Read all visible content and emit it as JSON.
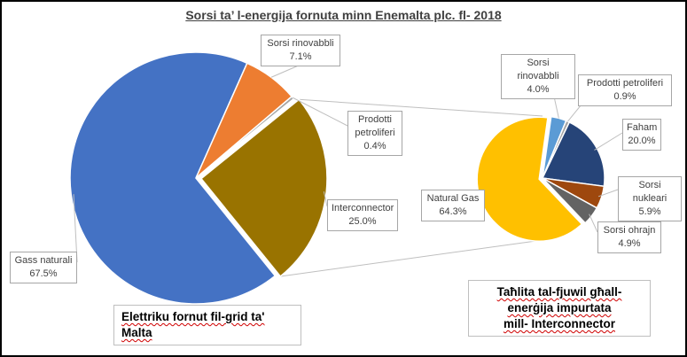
{
  "chart_data": [
    {
      "type": "pie",
      "title": "Sorsi ta’ l-energija fornuta minn Enemalta plc. fl- 2018",
      "caption": "Elettriku fornut fil-grid ta' Malta",
      "categories": [
        "Gass naturali",
        "Sorsi rinovabbli",
        "Prodotti petroliferi",
        "Interconnector"
      ],
      "labels": [
        "Gass naturali",
        "Sorsi rinovabbli",
        "Prodotti petroliferi",
        "Interconnector"
      ],
      "values": [
        67.5,
        7.1,
        0.4,
        25.0
      ],
      "value_labels": [
        "67.5%",
        "7.1%",
        "0.4%",
        "25.0%"
      ],
      "colors": [
        "#4472C4",
        "#ED7D31",
        "#A5A5A5",
        "#997300"
      ],
      "exploded_slice": "Interconnector"
    },
    {
      "type": "pie",
      "caption": "Taħlita tal-fjuwil għall-enerġija impurtata mill- Interconnector",
      "categories": [
        "Natural Gas",
        "Sorsi rinovabbli",
        "Prodotti petroliferi",
        "Faham",
        "Sorsi nukleari",
        "Sorsi ohrajn"
      ],
      "labels": [
        "Natural Gas",
        "Sorsi rinovabbli",
        "Prodotti petroliferi",
        "Faham",
        "Sorsi nukleari",
        "Sorsi ohrajn"
      ],
      "values": [
        64.3,
        4.0,
        0.9,
        20.0,
        5.9,
        4.9
      ],
      "value_labels": [
        "64.3%",
        "4.0%",
        "0.9%",
        "20.0%",
        "5.9%",
        "4.9%"
      ],
      "colors": [
        "#FFC000",
        "#5B9BD5",
        "#A5A5A5",
        "#264478",
        "#9E480E",
        "#636363"
      ],
      "exploded_slice": "Natural Gas"
    }
  ],
  "captions": {
    "main_line1": "Elettriku fornut fil-grid ta'",
    "main_line2": "Malta",
    "side_line1": "Taħlita tal-fjuwil għall-",
    "side_line2": "enerġija impurtata",
    "side_line3": "mill- Interconnector"
  },
  "colors": {
    "connector": "#bfbfbf",
    "label_border": "#a6a6a6",
    "text": "#404040"
  }
}
